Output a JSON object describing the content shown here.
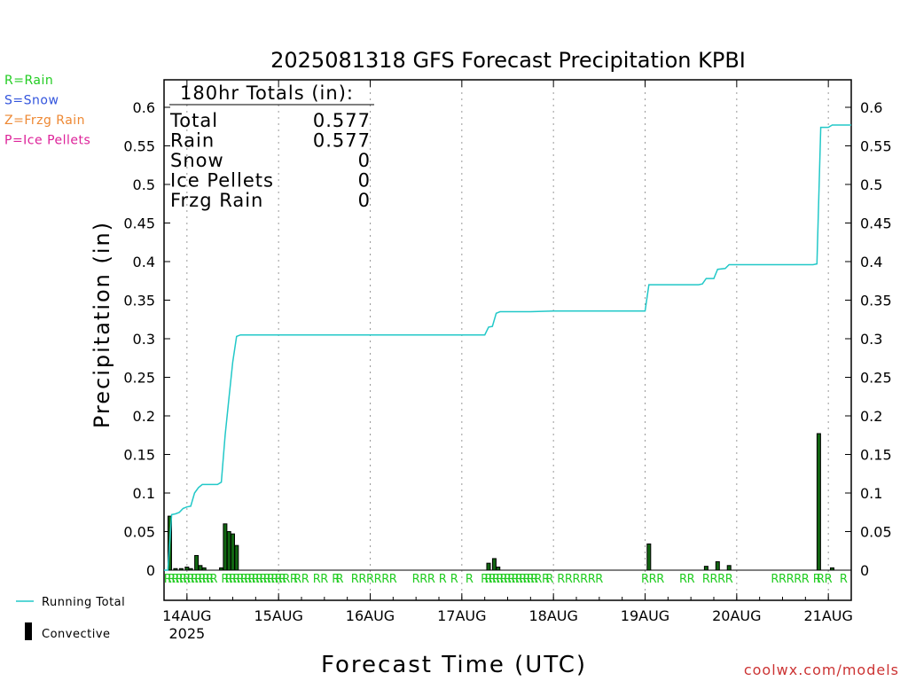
{
  "chart_data": {
    "type": "bar",
    "title": "2025081318 GFS Forecast Precipitation KPBI",
    "xlabel": "Forecast Time (UTC)",
    "ylabel": "Precipitation (in)",
    "ylim": [
      -0.035,
      0.635
    ],
    "y_ticks": [
      0,
      0.05,
      0.1,
      0.15,
      0.2,
      0.25,
      0.3,
      0.35,
      0.4,
      0.45,
      0.5,
      0.55,
      0.6
    ],
    "y_tick_labels": [
      "0",
      "0.05",
      "0.1",
      "0.15",
      "0.2",
      "0.25",
      "0.3",
      "0.35",
      "0.4",
      "0.45",
      "0.5",
      "0.55",
      "0.6"
    ],
    "x_unit": "forecast hour from 2025081318",
    "xlim": [
      0,
      180
    ],
    "x_ticks": [
      {
        "hour": 6,
        "label": "14AUG",
        "sublabel": "2025"
      },
      {
        "hour": 30,
        "label": "15AUG"
      },
      {
        "hour": 54,
        "label": "16AUG"
      },
      {
        "hour": 78,
        "label": "17AUG"
      },
      {
        "hour": 102,
        "label": "18AUG"
      },
      {
        "hour": 126,
        "label": "19AUG"
      },
      {
        "hour": 150,
        "label": "20AUG"
      },
      {
        "hour": 174,
        "label": "21AUG"
      }
    ],
    "grid": "vertical dotted at day boundaries",
    "series": [
      {
        "name": "Running Total",
        "kind": "line",
        "color": "#22c8c8",
        "points": [
          [
            0,
            0
          ],
          [
            1,
            0.0
          ],
          [
            2,
            0.072
          ],
          [
            3,
            0.073
          ],
          [
            4,
            0.075
          ],
          [
            5,
            0.08
          ],
          [
            6,
            0.082
          ],
          [
            7,
            0.083
          ],
          [
            8,
            0.1
          ],
          [
            9,
            0.107
          ],
          [
            10,
            0.111
          ],
          [
            12,
            0.111
          ],
          [
            14,
            0.111
          ],
          [
            15,
            0.114
          ],
          [
            16,
            0.175
          ],
          [
            17,
            0.223
          ],
          [
            18,
            0.27
          ],
          [
            19,
            0.303
          ],
          [
            20,
            0.305
          ],
          [
            22,
            0.305
          ],
          [
            30,
            0.305
          ],
          [
            54,
            0.305
          ],
          [
            78,
            0.305
          ],
          [
            84,
            0.305
          ],
          [
            85,
            0.315
          ],
          [
            86,
            0.316
          ],
          [
            87,
            0.333
          ],
          [
            88,
            0.335
          ],
          [
            90,
            0.335
          ],
          [
            96,
            0.335
          ],
          [
            102,
            0.336
          ],
          [
            126,
            0.336
          ],
          [
            127,
            0.37
          ],
          [
            128,
            0.37
          ],
          [
            140,
            0.37
          ],
          [
            141,
            0.371
          ],
          [
            142,
            0.378
          ],
          [
            144,
            0.378
          ],
          [
            145,
            0.39
          ],
          [
            147,
            0.391
          ],
          [
            148,
            0.396
          ],
          [
            150,
            0.396
          ],
          [
            160,
            0.396
          ],
          [
            168,
            0.396
          ],
          [
            170,
            0.396
          ],
          [
            171,
            0.397
          ],
          [
            172,
            0.574
          ],
          [
            174,
            0.574
          ],
          [
            175,
            0.577
          ],
          [
            180,
            0.577
          ]
        ]
      },
      {
        "name": "Convective",
        "kind": "bar",
        "color": "#000000",
        "fill": "#116611",
        "bars": [
          [
            1.5,
            0.07
          ],
          [
            3,
            0.002
          ],
          [
            4.5,
            0.002
          ],
          [
            6,
            0.004
          ],
          [
            7,
            0.002
          ],
          [
            8.5,
            0.019
          ],
          [
            9.5,
            0.006
          ],
          [
            10.5,
            0.003
          ],
          [
            15,
            0.003
          ],
          [
            16,
            0.06
          ],
          [
            17,
            0.05
          ],
          [
            18,
            0.047
          ],
          [
            19,
            0.032
          ],
          [
            85,
            0.009
          ],
          [
            86.5,
            0.015
          ],
          [
            87.5,
            0.004
          ],
          [
            127,
            0.034
          ],
          [
            142,
            0.005
          ],
          [
            145,
            0.011
          ],
          [
            148,
            0.006
          ],
          [
            171.5,
            0.177
          ],
          [
            175,
            0.003
          ]
        ]
      }
    ],
    "precip_type_labels": [
      1,
      2,
      3,
      4,
      5,
      6,
      7,
      8,
      9,
      10,
      11,
      12,
      13,
      16,
      17,
      18,
      19,
      20,
      21,
      22,
      23,
      24,
      25,
      26,
      27,
      28,
      29,
      30,
      31,
      32,
      34,
      35,
      37,
      40,
      42,
      45,
      46,
      50,
      52,
      54,
      56,
      58,
      60,
      66,
      68,
      70,
      73,
      76,
      80,
      84,
      85,
      86,
      87,
      88,
      89,
      90,
      91,
      92,
      93,
      94,
      95,
      96,
      97,
      98,
      100,
      101,
      104,
      106,
      108,
      110,
      112,
      114,
      126,
      128,
      130,
      136,
      138,
      142,
      144,
      146,
      148,
      160,
      162,
      164,
      166,
      168,
      171,
      172,
      174,
      178
    ],
    "precip_type_char": "R",
    "totals_box": {
      "header": "180hr Totals (in):",
      "rows": [
        {
          "label": "Total",
          "value": "0.577"
        },
        {
          "label": "Rain",
          "value": "0.577"
        },
        {
          "label": "Snow",
          "value": "0"
        },
        {
          "label": "Ice Pellets",
          "value": "0"
        },
        {
          "label": "Frzg Rain",
          "value": "0"
        }
      ]
    }
  },
  "legend": {
    "type_keys": [
      {
        "text": "R=Rain",
        "color": "#22cc22"
      },
      {
        "text": "S=Snow",
        "color": "#3355dd"
      },
      {
        "text": "Z=Frzg Rain",
        "color": "#ee8833"
      },
      {
        "text": "P=Ice Pellets",
        "color": "#dd2299"
      }
    ],
    "running_total_label": "Running Total",
    "convective_label": "Convective"
  },
  "credit": "coolwx.com/models"
}
